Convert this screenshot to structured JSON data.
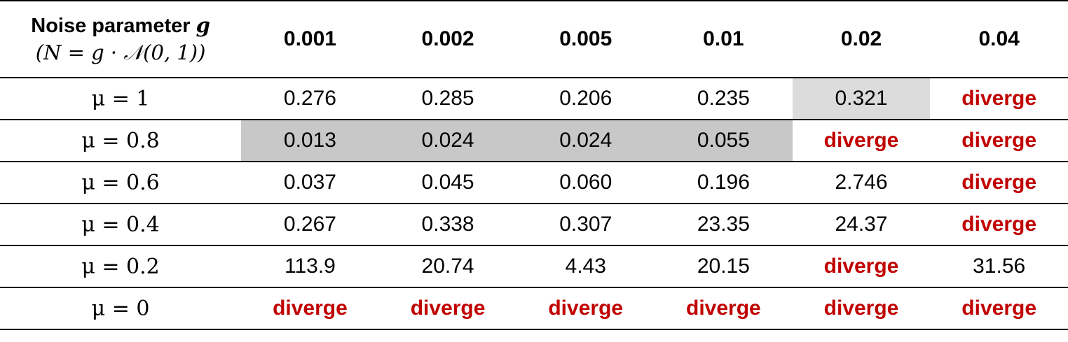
{
  "header": {
    "label_line1": "Noise parameter",
    "label_line1_var": "g",
    "label_line2": "(N = g · 𝒩(0, 1))",
    "columns": [
      "0.001",
      "0.002",
      "0.005",
      "0.01",
      "0.02",
      "0.04"
    ]
  },
  "rows": [
    {
      "label": "μ = 1",
      "cells": [
        "0.276",
        "0.285",
        "0.206",
        "0.235",
        "0.321",
        "diverge"
      ]
    },
    {
      "label": "μ = 0.8",
      "cells": [
        "0.013",
        "0.024",
        "0.024",
        "0.055",
        "diverge",
        "diverge"
      ]
    },
    {
      "label": "μ = 0.6",
      "cells": [
        "0.037",
        "0.045",
        "0.060",
        "0.196",
        "2.746",
        "diverge"
      ]
    },
    {
      "label": "μ = 0.4",
      "cells": [
        "0.267",
        "0.338",
        "0.307",
        "23.35",
        "24.37",
        "diverge"
      ]
    },
    {
      "label": "μ = 0.2",
      "cells": [
        "113.9",
        "20.74",
        "4.43",
        "20.15",
        "diverge",
        "31.56"
      ]
    },
    {
      "label": "μ = 0",
      "cells": [
        "diverge",
        "diverge",
        "diverge",
        "diverge",
        "diverge",
        "diverge"
      ]
    }
  ],
  "highlights": [
    {
      "row": 0,
      "col": 4,
      "shade": "light"
    },
    {
      "row": 1,
      "col": 0,
      "shade": "dark"
    },
    {
      "row": 1,
      "col": 1,
      "shade": "dark"
    },
    {
      "row": 1,
      "col": 2,
      "shade": "dark"
    },
    {
      "row": 1,
      "col": 3,
      "shade": "dark"
    }
  ],
  "colors": {
    "diverge_text": "#c00000",
    "shade_dark": "#c8c8c8",
    "shade_light": "#dcdcdc",
    "rule": "#000000"
  }
}
